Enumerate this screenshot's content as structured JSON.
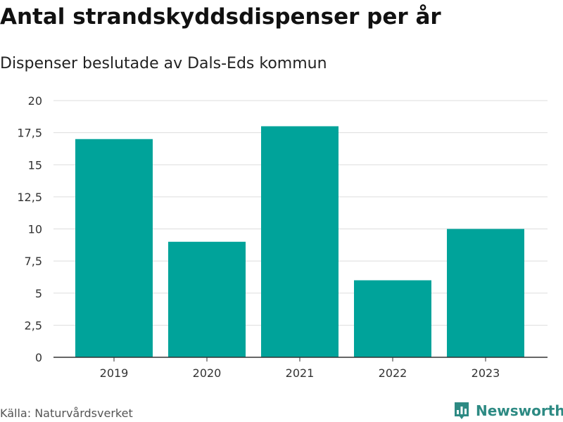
{
  "title": "Antal strandskyddsdispenser per år",
  "subtitle": "Dispenser beslutade av Dals-Eds kommun",
  "source": "Källa: Naturvårdsverket",
  "brand": "Newsworthy",
  "colors": {
    "bar": "#00a39a",
    "brand": "#2d8a83",
    "grid": "#dddddd",
    "axis": "#333333",
    "text": "#333333"
  },
  "chart_data": {
    "type": "bar",
    "categories": [
      "2019",
      "2020",
      "2021",
      "2022",
      "2023"
    ],
    "values": [
      17,
      9,
      18,
      6,
      10
    ],
    "ylim": [
      0,
      20
    ],
    "yticks": [
      0,
      2.5,
      5,
      7.5,
      10,
      12.5,
      15,
      17.5,
      20
    ],
    "ytick_labels": [
      "0",
      "2,5",
      "5",
      "7,5",
      "10",
      "12,5",
      "15",
      "17,5",
      "20"
    ],
    "grid": true,
    "xlabel": "",
    "ylabel": ""
  }
}
